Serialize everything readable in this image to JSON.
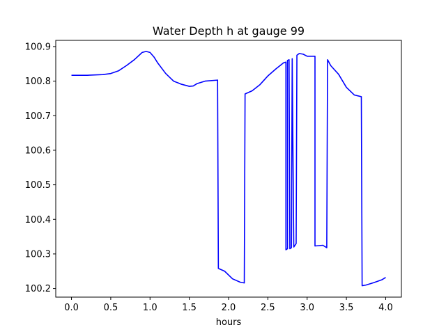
{
  "chart_data": {
    "type": "line",
    "title": "Water Depth h at gauge 99",
    "xlabel": "hours",
    "ylabel": "",
    "xlim": [
      -0.2,
      4.2
    ],
    "ylim": [
      100.175,
      100.918
    ],
    "xticks": [
      0.0,
      0.5,
      1.0,
      1.5,
      2.0,
      2.5,
      3.0,
      3.5,
      4.0
    ],
    "xtick_labels": [
      "0.0",
      "0.5",
      "1.0",
      "1.5",
      "2.0",
      "2.5",
      "3.0",
      "3.5",
      "4.0"
    ],
    "yticks": [
      100.2,
      100.3,
      100.4,
      100.5,
      100.6,
      100.7,
      100.8,
      100.9
    ],
    "ytick_labels": [
      "100.2",
      "100.3",
      "100.4",
      "100.5",
      "100.6",
      "100.7",
      "100.8",
      "100.9"
    ],
    "grid": false,
    "line_color": "#0000ff",
    "series": [
      {
        "x": [
          0.0,
          0.2,
          0.4,
          0.5,
          0.6,
          0.7,
          0.8,
          0.9,
          0.95,
          1.0,
          1.05,
          1.1,
          1.2,
          1.3,
          1.4,
          1.5,
          1.55,
          1.6,
          1.7,
          1.86,
          1.87,
          1.95,
          2.05,
          2.15,
          2.2,
          2.21,
          2.3,
          2.4,
          2.5,
          2.6,
          2.7,
          2.73,
          2.73,
          2.75,
          2.75,
          2.77,
          2.78,
          2.8,
          2.81,
          2.83,
          2.86,
          2.87,
          2.9,
          2.95,
          3.0,
          3.1,
          3.1,
          3.2,
          3.25,
          3.26,
          3.3,
          3.4,
          3.5,
          3.6,
          3.69,
          3.7,
          3.75,
          3.85,
          3.95,
          4.0
        ],
        "y": [
          100.817,
          100.817,
          100.819,
          100.822,
          100.83,
          100.845,
          100.862,
          100.883,
          100.886,
          100.883,
          100.87,
          100.852,
          100.822,
          100.8,
          100.791,
          100.785,
          100.786,
          100.793,
          100.8,
          100.803,
          100.258,
          100.25,
          100.228,
          100.218,
          100.216,
          100.763,
          100.772,
          100.79,
          100.815,
          100.835,
          100.853,
          100.855,
          100.312,
          100.315,
          100.86,
          100.862,
          100.315,
          100.318,
          100.865,
          100.32,
          100.33,
          100.875,
          100.88,
          100.878,
          100.872,
          100.872,
          100.323,
          100.325,
          100.318,
          100.862,
          100.845,
          100.82,
          100.782,
          100.76,
          100.755,
          100.208,
          100.21,
          100.217,
          100.225,
          100.232
        ]
      }
    ]
  }
}
